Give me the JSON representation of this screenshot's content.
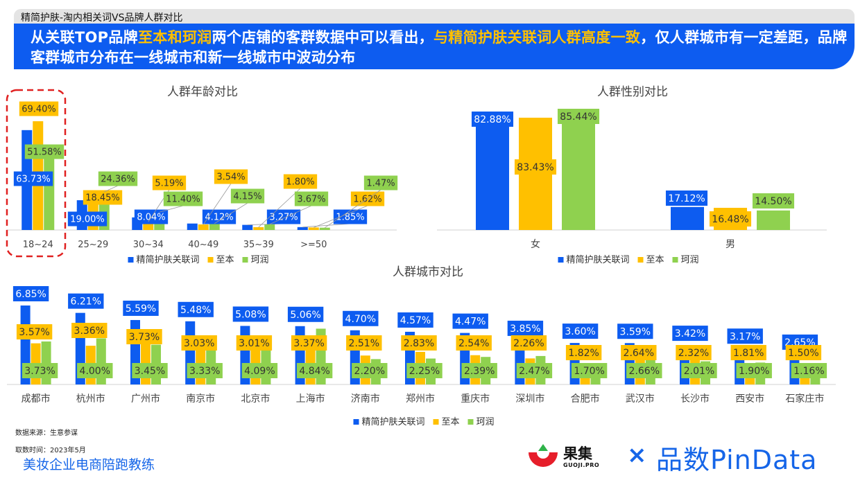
{
  "header": {
    "section_title": "精简护肤-淘内相关词VS品牌人群对比",
    "banner_parts": [
      {
        "text": "从关联TOP品牌",
        "hl": false
      },
      {
        "text": "至本和珂润",
        "hl": true
      },
      {
        "text": "两个店铺的客群数据中可以看出，",
        "hl": false
      },
      {
        "text": "与精简护肤关联词人群高度一致",
        "hl": true
      },
      {
        "text": "，仅人群城市有一定差距，品牌客群城市分布在一线城市和新一线城市中波动分布",
        "hl": false
      }
    ]
  },
  "colors": {
    "banner": "#0d5cf0",
    "highlight": "#ffc000",
    "series_blue": "#0d5cf0",
    "series_yellow": "#ffc000",
    "series_green": "#8fd14f",
    "dashed_box": "#e02020"
  },
  "chart_data": [
    {
      "type": "bar",
      "title": "人群年龄对比",
      "categories": [
        "18~24",
        "25~29",
        "30~34",
        "40~49",
        "35~39",
        ">=50"
      ],
      "series": [
        {
          "name": "精简护肤关联词",
          "values": [
            63.73,
            19.0,
            8.04,
            4.12,
            3.27,
            1.85
          ],
          "labels": [
            "63.73%",
            "19.00%",
            "8.04%",
            "4.12%",
            "3.27%",
            "1.85%"
          ]
        },
        {
          "name": "至本",
          "values": [
            69.4,
            18.45,
            5.19,
            3.54,
            1.8,
            1.62
          ],
          "labels": [
            "69.40%",
            "18.45%",
            "5.19%",
            "3.54%",
            "1.80%",
            "1.62%"
          ]
        },
        {
          "name": "珂润",
          "values": [
            51.58,
            24.36,
            11.4,
            4.15,
            3.67,
            1.47
          ],
          "labels": [
            "51.58%",
            "24.36%",
            "11.40%",
            "4.15%",
            "3.67%",
            "1.47%"
          ]
        }
      ],
      "highlighted_category": "18~24",
      "legend": "bottom"
    },
    {
      "type": "bar",
      "title": "人群性别对比",
      "categories": [
        "女",
        "男"
      ],
      "series": [
        {
          "name": "精简护肤关联词",
          "values": [
            82.88,
            17.12
          ],
          "labels": [
            "82.88%",
            "17.12%"
          ]
        },
        {
          "name": "至本",
          "values": [
            83.43,
            16.48
          ],
          "labels": [
            "83.43%",
            "16.48%"
          ]
        },
        {
          "name": "珂润",
          "values": [
            85.44,
            14.5
          ],
          "labels": [
            "85.44%",
            "14.50%"
          ]
        }
      ],
      "legend": "bottom"
    },
    {
      "type": "bar",
      "title": "人群城市对比",
      "categories": [
        "成都市",
        "杭州市",
        "广州市",
        "南京市",
        "北京市",
        "上海市",
        "济南市",
        "郑州市",
        "重庆市",
        "深圳市",
        "合肥市",
        "武汉市",
        "长沙市",
        "西安市",
        "石家庄市"
      ],
      "series": [
        {
          "name": "精简护肤关联词",
          "values": [
            6.85,
            6.21,
            5.59,
            5.48,
            5.08,
            5.06,
            4.7,
            4.57,
            4.47,
            3.85,
            3.6,
            3.59,
            3.42,
            3.17,
            2.65
          ],
          "labels": [
            "6.85%",
            "6.21%",
            "5.59%",
            "5.48%",
            "5.08%",
            "5.06%",
            "4.70%",
            "4.57%",
            "4.47%",
            "3.85%",
            "3.60%",
            "3.59%",
            "3.42%",
            "3.17%",
            "2.65%"
          ]
        },
        {
          "name": "至本",
          "values": [
            3.57,
            3.36,
            3.73,
            3.03,
            3.01,
            3.37,
            2.51,
            2.83,
            2.54,
            2.26,
            1.82,
            2.64,
            2.32,
            1.81,
            1.5
          ],
          "labels": [
            "3.57%",
            "3.36%",
            "3.73%",
            "3.03%",
            "3.01%",
            "3.37%",
            "2.51%",
            "2.83%",
            "2.54%",
            "2.26%",
            "1.82%",
            "2.64%",
            "2.32%",
            "1.81%",
            "1.50%"
          ]
        },
        {
          "name": "珂润",
          "values": [
            3.73,
            4.0,
            3.45,
            3.33,
            4.09,
            4.84,
            2.2,
            2.25,
            2.39,
            2.47,
            1.7,
            2.66,
            2.01,
            1.9,
            1.16
          ],
          "labels": [
            "3.73%",
            "4.00%",
            "3.45%",
            "3.33%",
            "4.09%",
            "4.84%",
            "2.20%",
            "2.25%",
            "2.39%",
            "2.47%",
            "1.70%",
            "2.66%",
            "2.01%",
            "1.90%",
            "1.16%"
          ]
        }
      ],
      "legend": "bottom"
    }
  ],
  "footer": {
    "source": "数据来源：生意参谋",
    "fetch_time": "取数时间：2023年5月",
    "link_text": "美妆企业电商陪跑教练"
  },
  "logos": {
    "guoji_name": "果集",
    "guoji_domain": "GUOJI.PRO",
    "times_sign": "×",
    "pindata": "品数PinData"
  }
}
